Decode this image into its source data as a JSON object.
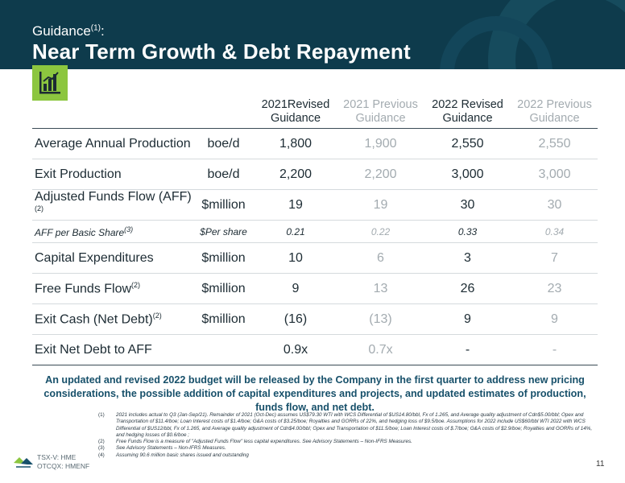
{
  "header": {
    "title_small": "Guidance",
    "title_small_sup": "(1)",
    "title_small_suffix": ":",
    "title_big": "Near Term Growth & Debt Repayment"
  },
  "icon": "bar-chart-icon",
  "colors": {
    "header_bg": "#0e3b4c",
    "accent_green": "#8cc63f",
    "note_blue": "#17506a",
    "muted_grey": "#a3abb0"
  },
  "table": {
    "columns": [
      {
        "line1": "2021Revised",
        "line2": "Guidance",
        "style": "dark"
      },
      {
        "line1": "2021 Previous",
        "line2": "Guidance",
        "style": "muted"
      },
      {
        "line1": "2022 Revised",
        "line2": "Guidance",
        "style": "dark"
      },
      {
        "line1": "2022 Previous",
        "line2": "Guidance",
        "style": "muted"
      }
    ],
    "rows": [
      {
        "label": "Average Annual Production",
        "sup": "",
        "unit": "boe/d",
        "values": [
          "1,800",
          "1,900",
          "2,550",
          "2,550"
        ]
      },
      {
        "label": "Exit Production",
        "sup": "",
        "unit": "boe/d",
        "values": [
          "2,200",
          "2,200",
          "3,000",
          "3,000"
        ]
      },
      {
        "label": "Adjusted Funds Flow (AFF)",
        "sup": "(2)",
        "unit": "$million",
        "values": [
          "19",
          "19",
          "30",
          "30"
        ]
      },
      {
        "label": "AFF per Basic Share",
        "sup": "(3)",
        "unit": "$Per share",
        "values": [
          "0.21",
          "0.22",
          "0.33",
          "0.34"
        ]
      },
      {
        "label": "Capital Expenditures",
        "sup": "",
        "unit": "$million",
        "values": [
          "10",
          "6",
          "3",
          "7"
        ]
      },
      {
        "label": "Free Funds Flow",
        "sup": "(2)",
        "unit": "$million",
        "values": [
          "9",
          "13",
          "26",
          "23"
        ]
      },
      {
        "label": "Exit Cash (Net Debt)",
        "sup": "(2)",
        "unit": "$million",
        "values": [
          "(16)",
          "(13)",
          "9",
          "9"
        ]
      },
      {
        "label": "Exit Net Debt to AFF",
        "sup": "",
        "unit": "",
        "values": [
          "0.9x",
          "0.7x",
          "-",
          "-"
        ]
      }
    ]
  },
  "note": "An updated and revised 2022 budget will be released by the Company in the first quarter to address new pricing considerations, the possible addition of capital expenditures and projects, and updated estimates of production, funds flow, and net debt.",
  "footnotes": [
    {
      "num": "(1)",
      "text": "2021 includes actual to Q3 (Jan-Sep/21). Remainder of 2021 (Oct-Dec) assumes US$79.30 WTI with WCS Differential of $US14.80/bbl, Fx of 1.265, and Average quality adjustment of Cdn$5.00/bbl; Opex and Transportation of $11.4/boe; Loan Interest costs of $1.4/boe; G&A costs of $3.25/boe; Royalties and GORRs of 22%, and hedging loss of $9.5/boe. Assumptions for 2022 include US$60/bbl WTI 2022 with WCS Differential of $US12/bbl, Fx of 1.265, and Average quality adjustment of Cdn$4.00/bbl; Opex and Transportation of $11.5/boe; Loan Interest costs of $.7/boe; G&A costs of $2.9/boe; Royalties and GORRs of 14%, and hedging losses of $0.6/boe ;"
    },
    {
      "num": "(2)",
      "text": "Free Funds Flow is a measure of \"Adjusted Funds Flow\" less capital expenditures. See Advisory Statements – Non-IFRS Measures."
    },
    {
      "num": "(3)",
      "text": "See Advisory Statements – Non-IFRS Measures."
    },
    {
      "num": "(4)",
      "text": "Assuming 90.6 million basic shares issued and outstanding"
    }
  ],
  "footer": {
    "ticker1": "TSX-V: HME",
    "ticker2": "OTCQX: HMENF",
    "page_number": "11"
  }
}
